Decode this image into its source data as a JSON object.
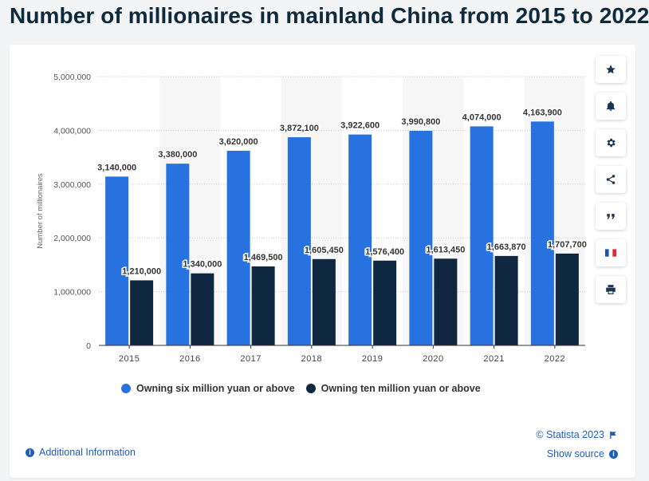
{
  "title": "Number of millionaires in mainland China from 2015 to 2022",
  "chart_data": {
    "type": "bar",
    "categories": [
      "2015",
      "2016",
      "2017",
      "2018",
      "2019",
      "2020",
      "2021",
      "2022"
    ],
    "series": [
      {
        "name": "Owning six million yuan or above",
        "color": "#2872e0",
        "values": [
          3140000,
          3380000,
          3620000,
          3872100,
          3922600,
          3990800,
          4074000,
          4163900
        ],
        "labels": [
          "3,140,000",
          "3,380,000",
          "3,620,000",
          "3,872,100",
          "3,922,600",
          "3,990,800",
          "4,074,000",
          "4,163,900"
        ]
      },
      {
        "name": "Owning ten million yuan or above",
        "color": "#0f2741",
        "values": [
          1210000,
          1340000,
          1469500,
          1605450,
          1576400,
          1613450,
          1663870,
          1707700
        ],
        "labels": [
          "1,210,000",
          "1,340,000",
          "1,469,500",
          "1,605,450",
          "1,576,400",
          "1,613,450",
          "1,663,870",
          "1,707,700"
        ]
      }
    ],
    "ylabel": "Number of millionaires",
    "xlabel": "",
    "ylim": [
      0,
      5000000
    ],
    "yticks": [
      "0",
      "1,000,000",
      "2,000,000",
      "3,000,000",
      "4,000,000",
      "5,000,000"
    ],
    "grid": true,
    "legend_position": "bottom"
  },
  "legend": [
    {
      "label": "Owning six million yuan or above",
      "color": "#2872e0"
    },
    {
      "label": "Owning ten million yuan or above",
      "color": "#0f2741"
    }
  ],
  "sidebar": [
    {
      "name": "favorite-star-icon"
    },
    {
      "name": "notification-bell-icon"
    },
    {
      "name": "settings-gear-icon"
    },
    {
      "name": "share-icon"
    },
    {
      "name": "cite-quote-icon"
    },
    {
      "name": "french-flag-icon"
    },
    {
      "name": "print-icon"
    }
  ],
  "footer": {
    "additional_info": "Additional Information",
    "copyright": "© Statista 2023",
    "show_source": "Show source"
  }
}
